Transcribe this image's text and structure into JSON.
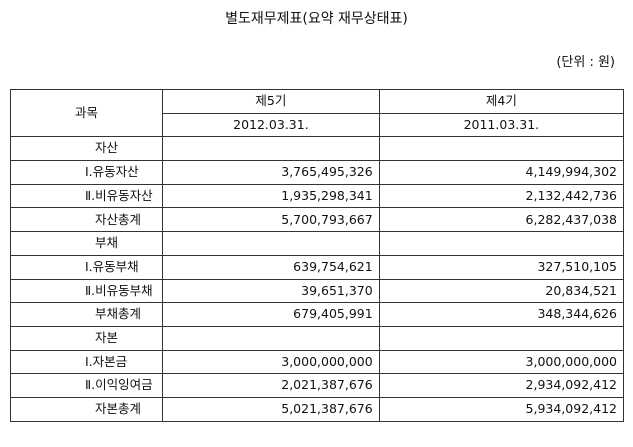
{
  "title": "별도재무제표(요약 재무상태표)",
  "unit": "(단위 : 원)",
  "header": {
    "subject": "과목",
    "period5": "제5기",
    "period4": "제4기",
    "date5": "2012.03.31.",
    "date4": "2011.03.31."
  },
  "rows": [
    {
      "label": "자산",
      "v5": "",
      "v4": ""
    },
    {
      "label": "Ⅰ.유동자산",
      "v5": "3,765,495,326",
      "v4": "4,149,994,302"
    },
    {
      "label": "Ⅱ.비유동자산",
      "v5": "1,935,298,341",
      "v4": "2,132,442,736"
    },
    {
      "label": "자산총계",
      "v5": "5,700,793,667",
      "v4": "6,282,437,038"
    },
    {
      "label": "부채",
      "v5": "",
      "v4": ""
    },
    {
      "label": "Ⅰ.유동부채",
      "v5": "639,754,621",
      "v4": "327,510,105"
    },
    {
      "label": "Ⅱ.비유동부채",
      "v5": "39,651,370",
      "v4": "20,834,521"
    },
    {
      "label": "부채총계",
      "v5": "679,405,991",
      "v4": "348,344,626"
    },
    {
      "label": "자본",
      "v5": "",
      "v4": ""
    },
    {
      "label": "Ⅰ.자본금",
      "v5": "3,000,000,000",
      "v4": "3,000,000,000"
    },
    {
      "label": "Ⅱ.이익잉여금",
      "v5": "2,021,387,676",
      "v4": "2,934,092,412"
    },
    {
      "label": "자본총계",
      "v5": "5,021,387,676",
      "v4": "5,934,092,412"
    }
  ]
}
